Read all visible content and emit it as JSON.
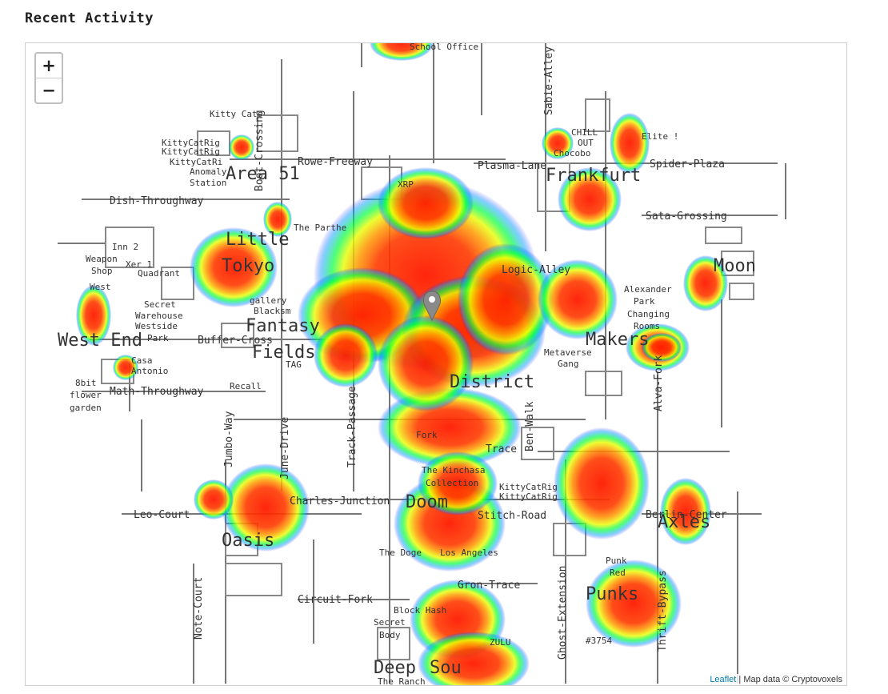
{
  "page": {
    "title": "Recent Activity"
  },
  "map": {
    "zoom_in_label": "+",
    "zoom_out_label": "−",
    "attribution": {
      "leaflet": "Leaflet",
      "separator": " | ",
      "text": "Map data © Cryptovoxels"
    },
    "district_labels": [
      "Area 51",
      "Frankfurt",
      "Moon",
      "West End",
      "Fantasy",
      "Fields",
      "District",
      "Tokyo",
      "Little",
      "Oasis",
      "Doom",
      "Axles",
      "Punks",
      "Deep",
      "Sou",
      "Makers"
    ],
    "street_labels": [
      "Rowe-Freeway",
      "Plasma-Lane",
      "Spider-Plaza",
      "Sata-Grossing",
      "Dish-Throughway",
      "Math-Throughway",
      "Buffer-Cross",
      "Leo-Court",
      "Charles-Junction",
      "Stitch-Road",
      "Circuit-Fork",
      "Gron-Trace",
      "Berlin-Center",
      "Jumbo-Way",
      "June-Drive",
      "Track-Passage",
      "Note-Court",
      "Ghost-Extension",
      "Thrift-Bypass",
      "Alva-Fork",
      "Sabie-Alley",
      "Boot-Crossing",
      "Ben-Walk",
      "Trace",
      "Logic-Alley",
      "School Office",
      "Inn 2",
      "Weapon",
      "Xer 1",
      "Shop",
      "Quadrant",
      "West",
      "Secret",
      "Warehouse",
      "Westside",
      "Park",
      "Casa",
      "Antonio",
      "8bit",
      "flower",
      "garden",
      "Recall",
      "gallery",
      "Blacksm",
      "TAG",
      "Metaverse",
      "Gang",
      "Alexander",
      "Park",
      "Changing",
      "Rooms",
      "Kitty Cats",
      "KittyCatRig",
      "KittyCatRig",
      "KittyCatRi",
      "Anomaly",
      "Station",
      "CHILL",
      "OUT",
      "Chocobo",
      "Elite !",
      "The Parthe",
      "XRP",
      "The Kinchasa",
      "Collection",
      "KittyCatRig",
      "KittyCatRig",
      "Fork",
      "The Doge",
      "Los Angeles",
      "Block Hash",
      "Secret",
      "Body",
      "ZULU",
      "The Ranch",
      "#3754",
      "Punk",
      "Red"
    ]
  }
}
